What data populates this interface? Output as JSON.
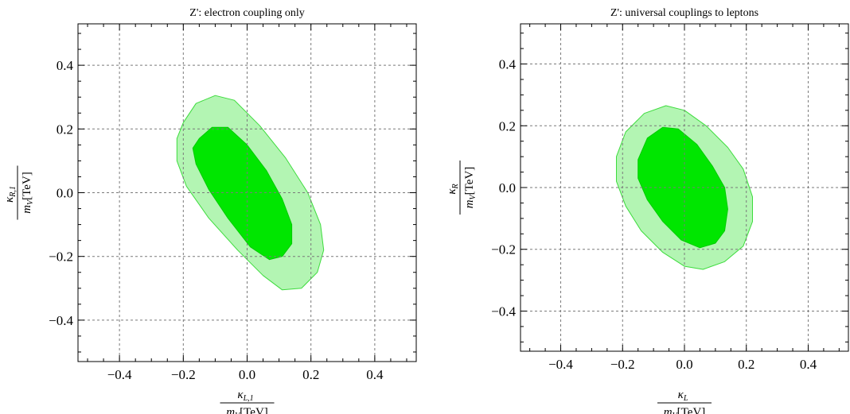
{
  "chart_data": [
    {
      "type": "contour",
      "title": "Z': electron coupling only",
      "xlabel": {
        "num_symbol": "κ",
        "num_sub": "L,1",
        "den_symbol": "m",
        "den_sub": "V",
        "den_unit": "[TeV]"
      },
      "ylabel": {
        "num_symbol": "κ",
        "num_sub": "R,1",
        "den_symbol": "m",
        "den_sub": "V",
        "den_unit": "[TeV]"
      },
      "xlim": [
        -0.53,
        0.53
      ],
      "ylim": [
        -0.53,
        0.53
      ],
      "xticks": [
        -0.4,
        -0.2,
        0.0,
        0.2,
        0.4
      ],
      "xtick_labels": [
        "−0.4",
        "−0.2",
        "0.0",
        "0.2",
        "0.4"
      ],
      "yticks": [
        -0.4,
        -0.2,
        0.0,
        0.2,
        0.4
      ],
      "ytick_labels": [
        "−0.4",
        "−0.2",
        "0.0",
        "0.2",
        "0.4"
      ],
      "grid": true,
      "regions": [
        {
          "level": "outer",
          "color": "#b3f5b3",
          "edge_color": "#3ddc3d",
          "points": [
            [
              -0.2,
              0.22
            ],
            [
              -0.16,
              0.28
            ],
            [
              -0.1,
              0.305
            ],
            [
              -0.04,
              0.29
            ],
            [
              0.04,
              0.21
            ],
            [
              0.12,
              0.11
            ],
            [
              0.19,
              0.0
            ],
            [
              0.23,
              -0.1
            ],
            [
              0.24,
              -0.18
            ],
            [
              0.22,
              -0.25
            ],
            [
              0.17,
              -0.3
            ],
            [
              0.11,
              -0.305
            ],
            [
              0.05,
              -0.26
            ],
            [
              -0.03,
              -0.18
            ],
            [
              -0.12,
              -0.08
            ],
            [
              -0.19,
              0.02
            ],
            [
              -0.22,
              0.1
            ],
            [
              -0.22,
              0.17
            ]
          ]
        },
        {
          "level": "inner",
          "color": "#00e600",
          "edge_color": "#00cc00",
          "points": [
            [
              -0.15,
              0.17
            ],
            [
              -0.11,
              0.205
            ],
            [
              -0.06,
              0.205
            ],
            [
              0.0,
              0.15
            ],
            [
              0.06,
              0.07
            ],
            [
              0.11,
              -0.02
            ],
            [
              0.14,
              -0.1
            ],
            [
              0.14,
              -0.16
            ],
            [
              0.11,
              -0.2
            ],
            [
              0.07,
              -0.21
            ],
            [
              0.01,
              -0.17
            ],
            [
              -0.06,
              -0.08
            ],
            [
              -0.12,
              0.01
            ],
            [
              -0.16,
              0.09
            ],
            [
              -0.17,
              0.14
            ]
          ]
        }
      ]
    },
    {
      "type": "contour",
      "title": "Z': universal couplings to leptons",
      "xlabel": {
        "num_symbol": "κ",
        "num_sub": "L",
        "den_symbol": "m",
        "den_sub": "V",
        "den_unit": "[TeV]"
      },
      "ylabel": {
        "num_symbol": "κ",
        "num_sub": "R",
        "den_symbol": "m",
        "den_sub": "V",
        "den_unit": "[TeV]"
      },
      "xlim": [
        -0.53,
        0.53
      ],
      "ylim": [
        -0.53,
        0.53
      ],
      "xticks": [
        -0.4,
        -0.2,
        0.0,
        0.2,
        0.4
      ],
      "xtick_labels": [
        "−0.4",
        "−0.2",
        "0.0",
        "0.2",
        "0.4"
      ],
      "yticks": [
        -0.4,
        -0.2,
        0.0,
        0.2,
        0.4
      ],
      "ytick_labels": [
        "−0.4",
        "−0.2",
        "0.0",
        "0.2",
        "0.4"
      ],
      "grid": true,
      "regions": [
        {
          "level": "outer",
          "color": "#b3f5b3",
          "edge_color": "#3ddc3d",
          "points": [
            [
              -0.22,
              0.1
            ],
            [
              -0.19,
              0.18
            ],
            [
              -0.13,
              0.24
            ],
            [
              -0.06,
              0.265
            ],
            [
              0.0,
              0.25
            ],
            [
              0.07,
              0.2
            ],
            [
              0.14,
              0.13
            ],
            [
              0.19,
              0.06
            ],
            [
              0.22,
              -0.03
            ],
            [
              0.22,
              -0.11
            ],
            [
              0.19,
              -0.19
            ],
            [
              0.13,
              -0.24
            ],
            [
              0.06,
              -0.265
            ],
            [
              0.0,
              -0.255
            ],
            [
              -0.07,
              -0.21
            ],
            [
              -0.14,
              -0.14
            ],
            [
              -0.19,
              -0.06
            ],
            [
              -0.22,
              0.02
            ]
          ]
        },
        {
          "level": "inner",
          "color": "#00e600",
          "edge_color": "#00cc00",
          "points": [
            [
              -0.15,
              0.09
            ],
            [
              -0.12,
              0.16
            ],
            [
              -0.07,
              0.195
            ],
            [
              -0.02,
              0.19
            ],
            [
              0.04,
              0.14
            ],
            [
              0.09,
              0.07
            ],
            [
              0.13,
              0.0
            ],
            [
              0.14,
              -0.07
            ],
            [
              0.13,
              -0.14
            ],
            [
              0.1,
              -0.18
            ],
            [
              0.05,
              -0.195
            ],
            [
              -0.01,
              -0.17
            ],
            [
              -0.07,
              -0.11
            ],
            [
              -0.12,
              -0.04
            ],
            [
              -0.15,
              0.03
            ]
          ]
        }
      ]
    }
  ]
}
